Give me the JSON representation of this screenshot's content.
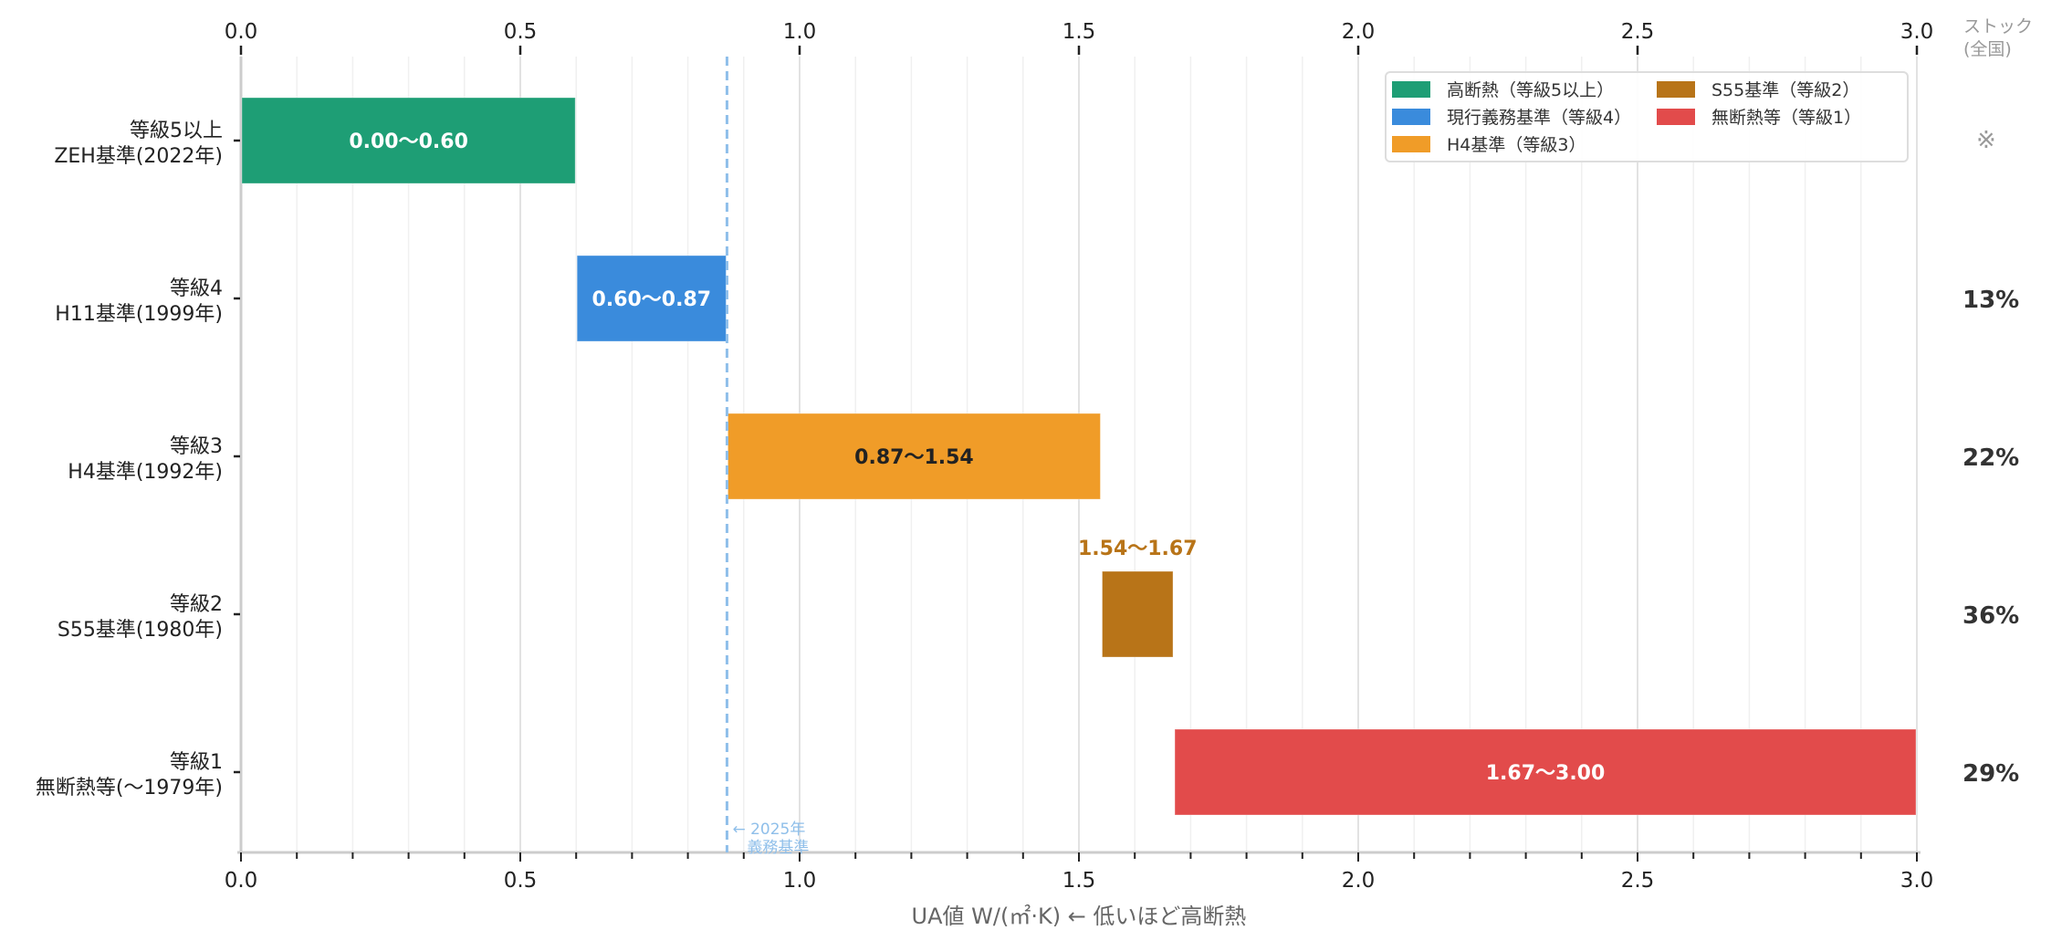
{
  "chart_data": {
    "type": "bar",
    "orientation": "horizontal-range",
    "xlabel": "UA値  W/(㎡·K)   ← 低いほど高断熱",
    "xlim": [
      0.0,
      3.0
    ],
    "xticks": [
      "0.0",
      "0.5",
      "1.0",
      "1.5",
      "2.0",
      "2.5",
      "3.0"
    ],
    "xtick_values": [
      0.0,
      0.5,
      1.0,
      1.5,
      2.0,
      2.5,
      3.0
    ],
    "grid": true,
    "stock_header": [
      "ストック",
      "(全国)"
    ],
    "categories": [
      {
        "lines": [
          "等級5以上",
          "ZEH基準(2022年)"
        ],
        "start": 0.0,
        "end": 0.6,
        "label": "0.00〜0.60",
        "color": "#1e9e75",
        "label_color": "#ffffff",
        "label_position": "inside",
        "stock": "※",
        "series": "高断熱（等級5以上）"
      },
      {
        "lines": [
          "等級4",
          "H11基準(1999年)"
        ],
        "start": 0.6,
        "end": 0.87,
        "label": "0.60〜0.87",
        "color": "#3a8bdc",
        "label_color": "#ffffff",
        "label_position": "inside",
        "stock": "13%",
        "series": "現行義務基準（等級4）"
      },
      {
        "lines": [
          "等級3",
          "H4基準(1992年)"
        ],
        "start": 0.87,
        "end": 1.54,
        "label": "0.87〜1.54",
        "color": "#f09c28",
        "label_color": "#222222",
        "label_position": "inside",
        "stock": "22%",
        "series": "H4基準（等級3）"
      },
      {
        "lines": [
          "等級2",
          "S55基準(1980年)"
        ],
        "start": 1.54,
        "end": 1.67,
        "label": "1.54〜1.67",
        "color": "#b87418",
        "label_color": "#b87418",
        "label_position": "above",
        "stock": "36%",
        "series": "S55基準（等級2）"
      },
      {
        "lines": [
          "等級1",
          "無断熱等(〜1979年)"
        ],
        "start": 1.67,
        "end": 3.0,
        "label": "1.67〜3.00",
        "color": "#e24b4b",
        "label_color": "#ffffff",
        "label_position": "inside",
        "stock": "29%",
        "series": "無断熱等（等級1）"
      }
    ],
    "legend": {
      "placement": "top-right",
      "entries": [
        {
          "label": "高断熱（等級5以上）",
          "color": "#1e9e75"
        },
        {
          "label": "現行義務基準（等級4）",
          "color": "#3a8bdc"
        },
        {
          "label": "H4基準（等級3）",
          "color": "#f09c28"
        },
        {
          "label": "S55基準（等級2）",
          "color": "#b87418"
        },
        {
          "label": "無断熱等（等級1）",
          "color": "#e24b4b"
        }
      ]
    },
    "reference_line": {
      "value": 0.87,
      "color": "#8fbfea",
      "lines": [
        "← 2025年",
        "義務基準"
      ]
    }
  }
}
